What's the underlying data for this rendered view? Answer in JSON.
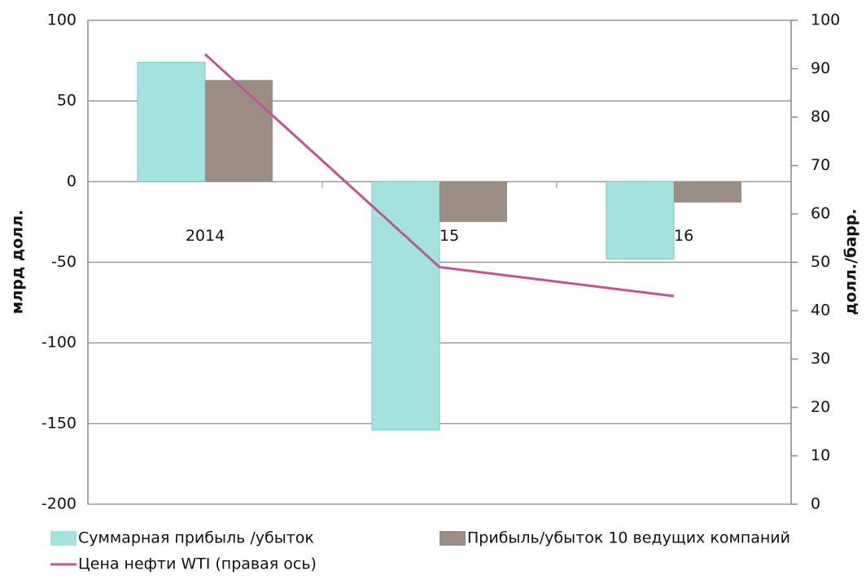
{
  "chart_data": {
    "type": "bar",
    "categories": [
      "2014",
      "2015",
      "2016"
    ],
    "y_label": "млрд долл.",
    "y2_label": "долл./барр.",
    "ylim": [
      -200,
      100
    ],
    "yticks": [
      -200,
      -150,
      -100,
      -50,
      0,
      50,
      100
    ],
    "y2lim": [
      0,
      100
    ],
    "y2ticks": [
      0,
      10,
      20,
      30,
      40,
      50,
      60,
      70,
      80,
      90,
      100
    ],
    "grid": true,
    "series": [
      {
        "name": "Суммарная прибыль /убыток",
        "color": "#a3e2de",
        "values": [
          74,
          -154,
          -48
        ]
      },
      {
        "name": "Прибыль/убыток 10 ведущих компаний",
        "color": "#9c8d84",
        "values": [
          63,
          -25,
          -13
        ]
      },
      {
        "name": "Цена нефти WTI (правая ось)",
        "color": "#c2548f",
        "type": "line",
        "axis": "y2",
        "values": [
          93,
          49,
          43
        ]
      }
    ]
  }
}
